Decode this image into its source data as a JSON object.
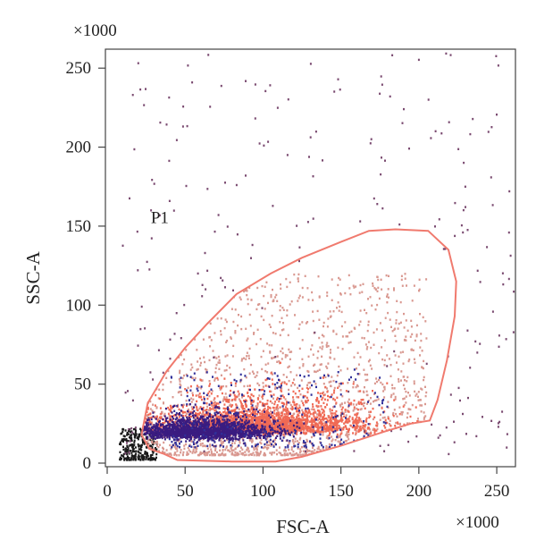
{
  "chart_data": {
    "type": "scatter",
    "x_label": "FSC-A",
    "y_label": "SSC-A",
    "x_multiplier": "×1000",
    "y_multiplier": "×1000",
    "xlim": [
      0,
      262
    ],
    "ylim": [
      0,
      262
    ],
    "x_ticks": [
      0,
      50,
      100,
      150,
      200,
      250
    ],
    "y_ticks": [
      0,
      50,
      100,
      150,
      200,
      250
    ],
    "gate": {
      "label": "P1",
      "label_position": [
        28,
        152
      ],
      "color": "#f07a6e",
      "polygon": [
        [
          36,
          6
        ],
        [
          45,
          2
        ],
        [
          80,
          1
        ],
        [
          108,
          1
        ],
        [
          125,
          4
        ],
        [
          150,
          11
        ],
        [
          178,
          20
        ],
        [
          195,
          25
        ],
        [
          207,
          27
        ],
        [
          212,
          40
        ],
        [
          218,
          65
        ],
        [
          223,
          93
        ],
        [
          224,
          115
        ],
        [
          219,
          135
        ],
        [
          206,
          147
        ],
        [
          185,
          148
        ],
        [
          168,
          147
        ],
        [
          150,
          140
        ],
        [
          125,
          130
        ],
        [
          105,
          120
        ],
        [
          83,
          107
        ],
        [
          64,
          88
        ],
        [
          50,
          73
        ],
        [
          38,
          58
        ],
        [
          26,
          38
        ],
        [
          22,
          18
        ],
        [
          27,
          9
        ]
      ]
    },
    "populations": [
      {
        "color": "#1a1a1a",
        "count": 260,
        "x_range": [
          8,
          32
        ],
        "y_range": [
          2,
          22
        ],
        "distribution": "debris"
      },
      {
        "color": "#d99890",
        "count": 1500,
        "x_range": [
          25,
          205
        ],
        "y_range": [
          5,
          120
        ],
        "distribution": "gated-sparse"
      },
      {
        "color": "#f06a55",
        "count": 2400,
        "center": [
          98,
          20
        ],
        "spread": [
          36,
          10
        ],
        "distribution": "gated-dense"
      },
      {
        "color": "#3a1c80",
        "count": 1600,
        "center": [
          62,
          17
        ],
        "spread": [
          22,
          6
        ],
        "distribution": "core"
      },
      {
        "color": "#30309a",
        "count": 260,
        "x_range": [
          40,
          180
        ],
        "y_range": [
          10,
          60
        ],
        "distribution": "scattered"
      },
      {
        "color": "#7a4a70",
        "count": 220,
        "x_range": [
          10,
          262
        ],
        "y_range": [
          5,
          262
        ],
        "distribution": "outliers"
      }
    ],
    "grid": false,
    "legend": "none"
  }
}
